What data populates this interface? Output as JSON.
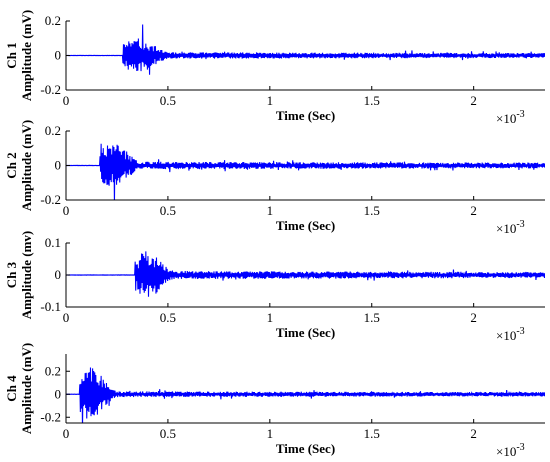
{
  "chart_data": [
    {
      "type": "line",
      "ylabel_line1": "Ch 1",
      "ylabel_line2": "Amplitude (mV)",
      "xlabel": "Time (Sec)",
      "x_multiplier_base": "×10",
      "x_multiplier_exp": "-3",
      "xlim": [
        0,
        2.35
      ],
      "ylim": [
        -0.2,
        0.2
      ],
      "x_ticks": [
        0,
        0.5,
        1,
        1.5,
        2
      ],
      "x_tick_labels": [
        "0",
        "0.5",
        "1",
        "1.5",
        "2"
      ],
      "y_ticks": [
        0.2,
        0,
        -0.2
      ],
      "y_tick_labels": [
        "0.2",
        "0",
        "-0.2"
      ],
      "burst_center": 0.35,
      "burst_peak": 0.1,
      "burst_width": 0.08,
      "noise_level": 0.012,
      "seed": 11
    },
    {
      "type": "line",
      "ylabel_line1": "Ch 2",
      "ylabel_line2": "Amplitude (mV)",
      "xlabel": "Time (Sec)",
      "x_multiplier_base": "×10",
      "x_multiplier_exp": "-3",
      "xlim": [
        0,
        2.35
      ],
      "ylim": [
        -0.2,
        0.2
      ],
      "x_ticks": [
        0,
        0.5,
        1,
        1.5,
        2
      ],
      "x_tick_labels": [
        "0",
        "0.5",
        "1",
        "1.5",
        "2"
      ],
      "y_ticks": [
        0.2,
        0,
        -0.2
      ],
      "y_tick_labels": [
        "0.2",
        "0",
        "-0.2"
      ],
      "burst_center": 0.23,
      "burst_peak": 0.13,
      "burst_width": 0.07,
      "noise_level": 0.014,
      "seed": 23
    },
    {
      "type": "line",
      "ylabel_line1": "Ch 3",
      "ylabel_line2": "Amplitude (mv)",
      "xlabel": "Time (Sec)",
      "x_multiplier_base": "×10",
      "x_multiplier_exp": "-3",
      "xlim": [
        0,
        2.35
      ],
      "ylim": [
        -0.1,
        0.1
      ],
      "x_ticks": [
        0,
        0.5,
        1,
        1.5,
        2
      ],
      "x_tick_labels": [
        "0",
        "0.5",
        "1",
        "1.5",
        "2"
      ],
      "y_ticks": [
        0.1,
        0,
        -0.1
      ],
      "y_tick_labels": [
        "0.1",
        "0",
        "-0.1"
      ],
      "burst_center": 0.4,
      "burst_peak": 0.07,
      "burst_width": 0.07,
      "noise_level": 0.008,
      "seed": 37
    },
    {
      "type": "line",
      "ylabel_line1": "Ch 4",
      "ylabel_line2": "Amplitude (mV)",
      "xlabel": "Time (Sec)",
      "x_multiplier_base": "×10",
      "x_multiplier_exp": "-3",
      "xlim": [
        0,
        2.35
      ],
      "ylim": [
        -0.25,
        0.35
      ],
      "x_ticks": [
        0,
        0.5,
        1,
        1.5,
        2
      ],
      "x_tick_labels": [
        "0",
        "0.5",
        "1",
        "1.5",
        "2"
      ],
      "y_ticks": [
        0.2,
        0,
        -0.2
      ],
      "y_tick_labels": [
        "0.2",
        "0",
        "-0.2"
      ],
      "burst_center": 0.12,
      "burst_peak": 0.24,
      "burst_width": 0.06,
      "noise_level": 0.016,
      "seed": 53
    }
  ],
  "colors": {
    "signal": "#0000ff",
    "axes": "#000000"
  }
}
